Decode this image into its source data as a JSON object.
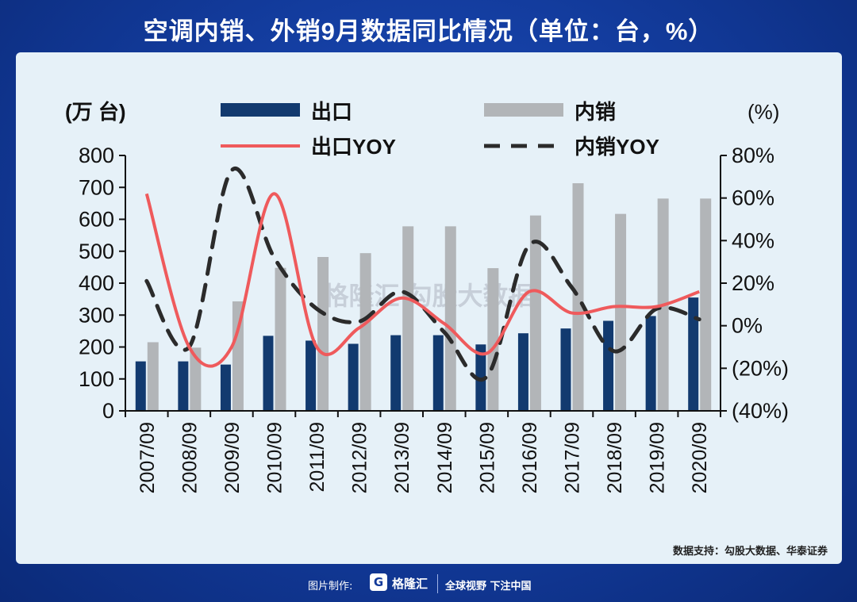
{
  "title": "空调内销、外销9月数据同比情况（单位：台，%）",
  "source_note": "数据支持：勾股大数据、华泰证券",
  "watermark": {
    "brand": "格隆汇",
    "text": "勾股大数据"
  },
  "footer": {
    "credit": "图片制作:",
    "logo_letter": "G",
    "brand": "格隆汇",
    "slogan": "全球视野 下注中国"
  },
  "colors": {
    "export_bar": "#123a6f",
    "domestic_bar": "#b2b5b8",
    "export_yoy": "#ef5a5c",
    "domestic_yoy": "#2b2b2b"
  },
  "chart_data": {
    "type": "bar",
    "categories": [
      "2007/09",
      "2008/09",
      "2009/09",
      "2010/09",
      "2011/09",
      "2012/09",
      "2013/09",
      "2014/09",
      "2015/09",
      "2016/09",
      "2017/09",
      "2018/09",
      "2019/09",
      "2020/09"
    ],
    "left_axis": {
      "label": "(万 台)",
      "ylim": [
        0,
        800
      ],
      "ticks": [
        "0",
        "100",
        "200",
        "300",
        "400",
        "500",
        "600",
        "700",
        "800"
      ]
    },
    "right_axis": {
      "label": "(%)",
      "ylim": [
        -40,
        80
      ],
      "ticks": [
        "(40%)",
        "(20%)",
        "0%",
        "20%",
        "40%",
        "60%",
        "80%"
      ]
    },
    "series": [
      {
        "name": "出口",
        "kind": "bar",
        "axis": "left",
        "values": [
          155,
          155,
          145,
          235,
          220,
          210,
          237,
          237,
          208,
          243,
          258,
          282,
          297,
          355
        ]
      },
      {
        "name": "内销",
        "kind": "bar",
        "axis": "left",
        "values": [
          215,
          198,
          343,
          448,
          482,
          494,
          578,
          578,
          447,
          612,
          713,
          617,
          665,
          665
        ]
      },
      {
        "name": "出口YOY",
        "kind": "line",
        "axis": "right",
        "values": [
          62,
          -10,
          -10,
          62,
          -10,
          -1,
          13,
          1,
          -13,
          16,
          6,
          9,
          9,
          16
        ]
      },
      {
        "name": "内销YOY",
        "kind": "line",
        "axis": "right",
        "style": "dashed",
        "values": [
          21,
          -10,
          73,
          32,
          8,
          2,
          16,
          -3,
          -24,
          38,
          18,
          -12,
          8,
          3
        ]
      }
    ],
    "legend": [
      "出口",
      "内销",
      "出口YOY",
      "内销YOY"
    ],
    "legend_position": "top"
  }
}
